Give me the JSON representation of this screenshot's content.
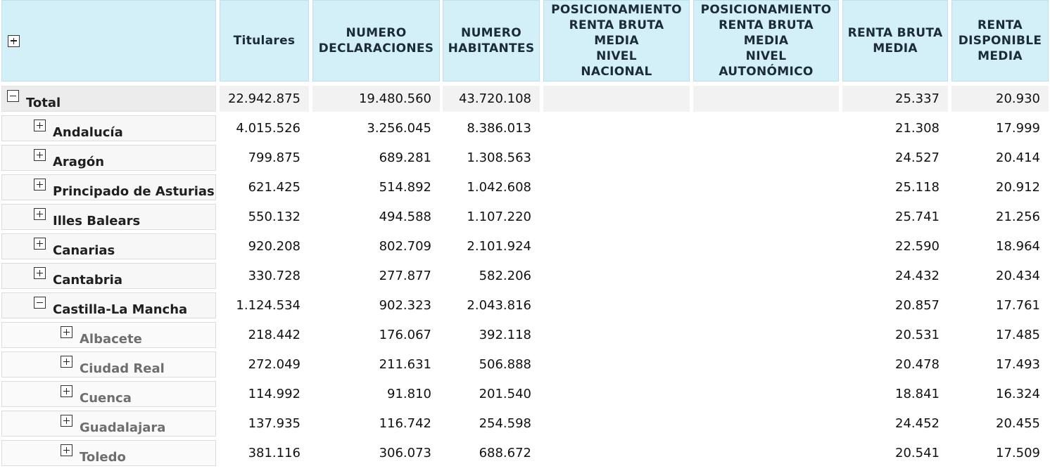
{
  "headers": {
    "col_titulares": "Titulares",
    "col_num_declaraciones": "NUMERO\nDECLARACIONES",
    "col_num_habitantes": "NUMERO\nHABITANTES",
    "col_pos_nacional": "POSICIONAMIENTO\nRENTA BRUTA\nMEDIA\nNIVEL\nNACIONAL",
    "col_pos_autonomico": "POSICIONAMIENTO\nRENTA BRUTA\nMEDIA\nNIVEL\nAUTONÓMICO",
    "col_renta_bruta": "RENTA BRUTA\nMEDIA",
    "col_renta_disponible": "RENTA\nDISPONIBLE\nMEDIA"
  },
  "rows": [
    {
      "label": "Total",
      "level": 0,
      "expanded": true,
      "titulares": "22.942.875",
      "declaraciones": "19.480.560",
      "habitantes": "43.720.108",
      "pos_nacional": "",
      "pos_autonomico": "",
      "renta_bruta": "25.337",
      "renta_disponible": "20.930"
    },
    {
      "label": "Andalucía",
      "level": 1,
      "expanded": false,
      "titulares": "4.015.526",
      "declaraciones": "3.256.045",
      "habitantes": "8.386.013",
      "pos_nacional": "",
      "pos_autonomico": "",
      "renta_bruta": "21.308",
      "renta_disponible": "17.999"
    },
    {
      "label": "Aragón",
      "level": 1,
      "expanded": false,
      "titulares": "799.875",
      "declaraciones": "689.281",
      "habitantes": "1.308.563",
      "pos_nacional": "",
      "pos_autonomico": "",
      "renta_bruta": "24.527",
      "renta_disponible": "20.414"
    },
    {
      "label": "Principado de Asturias",
      "level": 1,
      "expanded": false,
      "titulares": "621.425",
      "declaraciones": "514.892",
      "habitantes": "1.042.608",
      "pos_nacional": "",
      "pos_autonomico": "",
      "renta_bruta": "25.118",
      "renta_disponible": "20.912"
    },
    {
      "label": "Illes Balears",
      "level": 1,
      "expanded": false,
      "titulares": "550.132",
      "declaraciones": "494.588",
      "habitantes": "1.107.220",
      "pos_nacional": "",
      "pos_autonomico": "",
      "renta_bruta": "25.741",
      "renta_disponible": "21.256"
    },
    {
      "label": "Canarias",
      "level": 1,
      "expanded": false,
      "titulares": "920.208",
      "declaraciones": "802.709",
      "habitantes": "2.101.924",
      "pos_nacional": "",
      "pos_autonomico": "",
      "renta_bruta": "22.590",
      "renta_disponible": "18.964"
    },
    {
      "label": "Cantabria",
      "level": 1,
      "expanded": false,
      "titulares": "330.728",
      "declaraciones": "277.877",
      "habitantes": "582.206",
      "pos_nacional": "",
      "pos_autonomico": "",
      "renta_bruta": "24.432",
      "renta_disponible": "20.434"
    },
    {
      "label": "Castilla-La Mancha",
      "level": 1,
      "expanded": true,
      "titulares": "1.124.534",
      "declaraciones": "902.323",
      "habitantes": "2.043.816",
      "pos_nacional": "",
      "pos_autonomico": "",
      "renta_bruta": "20.857",
      "renta_disponible": "17.761"
    },
    {
      "label": "Albacete",
      "level": 2,
      "expanded": false,
      "titulares": "218.442",
      "declaraciones": "176.067",
      "habitantes": "392.118",
      "pos_nacional": "",
      "pos_autonomico": "",
      "renta_bruta": "20.531",
      "renta_disponible": "17.485"
    },
    {
      "label": "Ciudad Real",
      "level": 2,
      "expanded": false,
      "titulares": "272.049",
      "declaraciones": "211.631",
      "habitantes": "506.888",
      "pos_nacional": "",
      "pos_autonomico": "",
      "renta_bruta": "20.478",
      "renta_disponible": "17.493"
    },
    {
      "label": "Cuenca",
      "level": 2,
      "expanded": false,
      "titulares": "114.992",
      "declaraciones": "91.810",
      "habitantes": "201.540",
      "pos_nacional": "",
      "pos_autonomico": "",
      "renta_bruta": "18.841",
      "renta_disponible": "16.324"
    },
    {
      "label": "Guadalajara",
      "level": 2,
      "expanded": false,
      "titulares": "137.935",
      "declaraciones": "116.742",
      "habitantes": "254.598",
      "pos_nacional": "",
      "pos_autonomico": "",
      "renta_bruta": "24.452",
      "renta_disponible": "20.455"
    },
    {
      "label": "Toledo",
      "level": 2,
      "expanded": false,
      "titulares": "381.116",
      "declaraciones": "306.073",
      "habitantes": "688.672",
      "pos_nacional": "",
      "pos_autonomico": "",
      "renta_bruta": "20.541",
      "renta_disponible": "17.509"
    }
  ]
}
